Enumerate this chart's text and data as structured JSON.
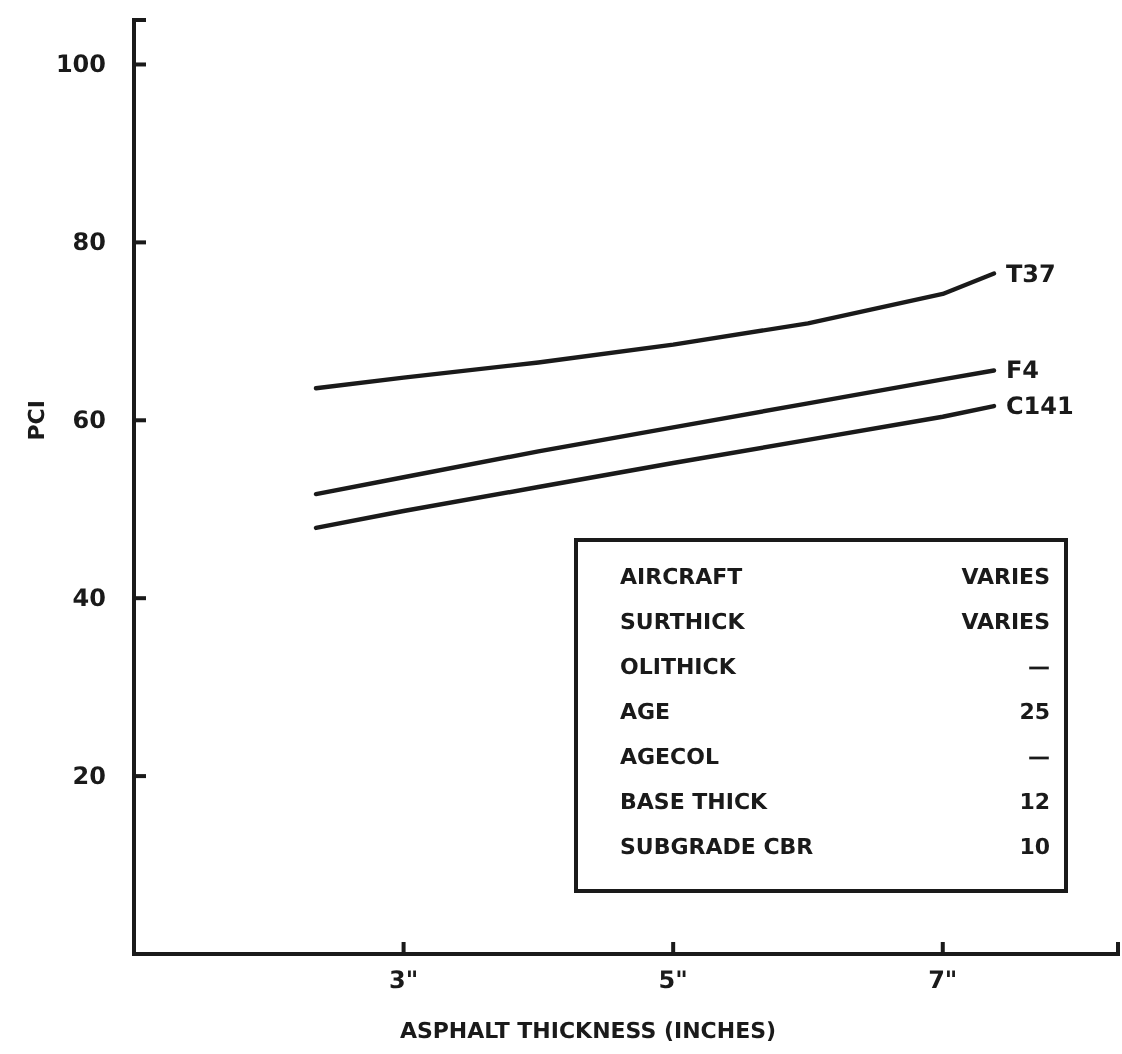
{
  "chart_data": {
    "type": "line",
    "xlabel": "ASPHALT THICKNESS (INCHES)",
    "ylabel": "PCI",
    "x": [
      2.35,
      3,
      4,
      5,
      6,
      7,
      7.38
    ],
    "series": [
      {
        "name": "T37",
        "color": "#1a1a1a",
        "values": [
          63.6,
          64.8,
          66.5,
          68.5,
          70.9,
          74.2,
          76.5
        ]
      },
      {
        "name": "F4",
        "color": "#1a1a1a",
        "values": [
          51.7,
          53.6,
          56.5,
          59.2,
          61.9,
          64.6,
          65.6
        ]
      },
      {
        "name": "C141",
        "color": "#1a1a1a",
        "values": [
          47.9,
          49.8,
          52.5,
          55.2,
          57.8,
          60.4,
          61.6
        ]
      }
    ],
    "xlim": [
      1,
      8.3
    ],
    "xticks": [
      {
        "value": 3,
        "label": "3\""
      },
      {
        "value": 5,
        "label": "5\""
      },
      {
        "value": 7,
        "label": "7\""
      }
    ],
    "ylim": [
      0,
      105
    ],
    "yticks": [
      20,
      40,
      60,
      80,
      100
    ],
    "grid": false,
    "legend": false,
    "annotations": [
      "AIRCRAFT",
      "VARIES",
      "SURTHICK",
      "VARIES",
      "OLITHICK",
      "—",
      "AGE",
      "25",
      "AGECOL",
      "—",
      "BASE THICK",
      "12",
      "SUBGRADE CBR",
      "10"
    ]
  }
}
